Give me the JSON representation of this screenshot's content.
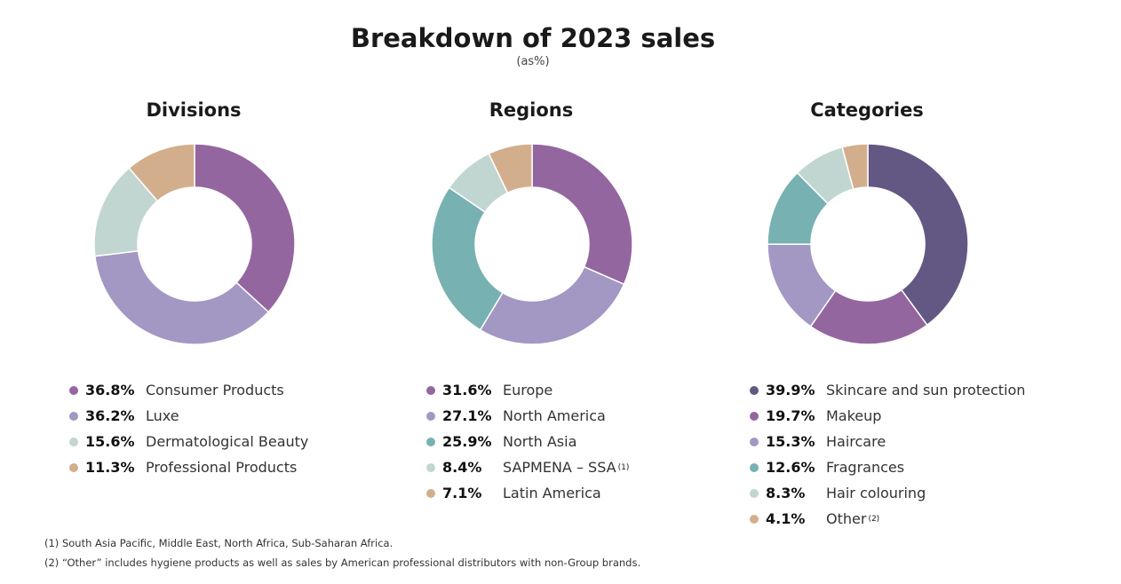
{
  "title": "Breakdown of 2023 sales",
  "subtitle": "(as%)",
  "footnotes": [
    "(1) South Asia Pacific, Middle East, North Africa, Sub-Saharan Africa.",
    "(2) “Other” includes hygiene products as well as sales by American professional distributors with non-Group brands."
  ],
  "chart_data": [
    {
      "type": "pie",
      "title": "Divisions",
      "unit": "%",
      "slices": [
        {
          "label": "Consumer Products",
          "value": 36.8,
          "display": "36.8%",
          "color": "#9466a0",
          "note": ""
        },
        {
          "label": "Luxe",
          "value": 36.2,
          "display": "36.2%",
          "color": "#a397c3",
          "note": ""
        },
        {
          "label": "Dermatological Beauty",
          "value": 15.6,
          "display": "15.6%",
          "color": "#c2d6d1",
          "note": ""
        },
        {
          "label": "Professional Products",
          "value": 11.3,
          "display": "11.3%",
          "color": "#d3ae8c",
          "note": ""
        }
      ]
    },
    {
      "type": "pie",
      "title": "Regions",
      "unit": "%",
      "slices": [
        {
          "label": "Europe",
          "value": 31.6,
          "display": "31.6%",
          "color": "#9466a0",
          "note": ""
        },
        {
          "label": "North America",
          "value": 27.1,
          "display": "27.1%",
          "color": "#a397c3",
          "note": ""
        },
        {
          "label": "North Asia",
          "value": 25.9,
          "display": "25.9%",
          "color": "#78b1b1",
          "note": ""
        },
        {
          "label": "SAPMENA – SSA",
          "value": 8.4,
          "display": "8.4%",
          "color": "#c2d6d1",
          "note": "(1)"
        },
        {
          "label": "Latin America",
          "value": 7.1,
          "display": "7.1%",
          "color": "#d3ae8c",
          "note": ""
        }
      ]
    },
    {
      "type": "pie",
      "title": "Categories",
      "unit": "%",
      "slices": [
        {
          "label": "Skincare and sun protection",
          "value": 39.9,
          "display": "39.9%",
          "color": "#635783",
          "note": ""
        },
        {
          "label": "Makeup",
          "value": 19.7,
          "display": "19.7%",
          "color": "#9466a0",
          "note": ""
        },
        {
          "label": "Haircare",
          "value": 15.3,
          "display": "15.3%",
          "color": "#a397c3",
          "note": ""
        },
        {
          "label": "Fragrances",
          "value": 12.6,
          "display": "12.6%",
          "color": "#78b1b1",
          "note": ""
        },
        {
          "label": "Hair colouring",
          "value": 8.3,
          "display": "8.3%",
          "color": "#c2d6d1",
          "note": ""
        },
        {
          "label": "Other",
          "value": 4.1,
          "display": "4.1%",
          "color": "#d3ae8c",
          "note": "(2)"
        }
      ]
    }
  ]
}
